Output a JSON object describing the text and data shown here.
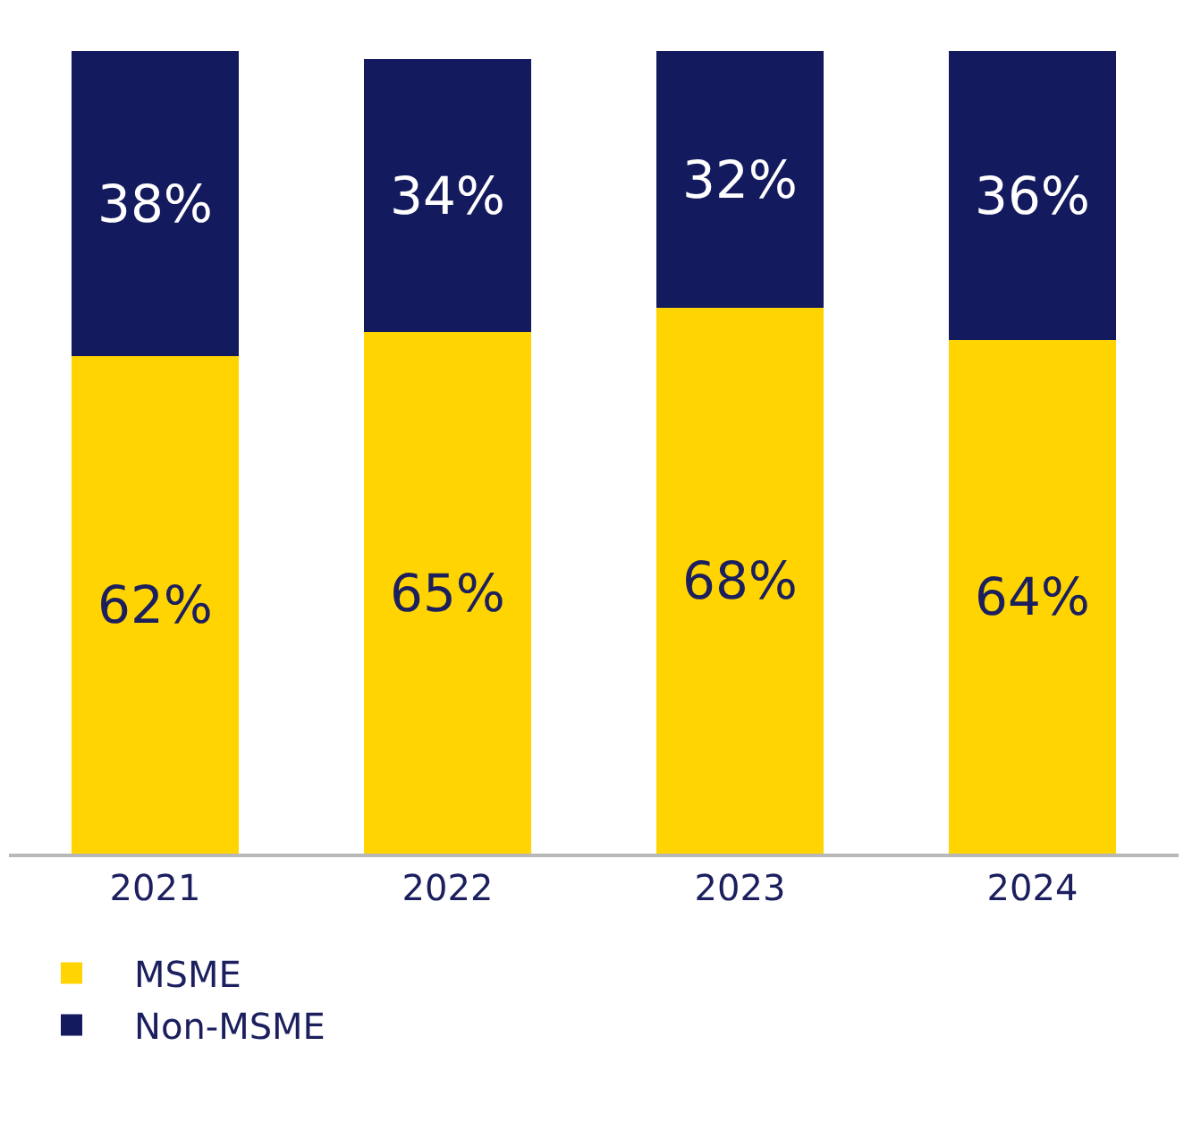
{
  "chart_data": {
    "type": "bar",
    "stacked": true,
    "categories": [
      "2021",
      "2022",
      "2023",
      "2024"
    ],
    "series": [
      {
        "name": "MSME",
        "color": "#ffd400",
        "values": [
          62,
          65,
          68,
          64
        ],
        "value_labels": [
          "62%",
          "65%",
          "68%",
          "64%"
        ]
      },
      {
        "name": "Non-MSME",
        "color": "#141a5e",
        "values": [
          38,
          34,
          32,
          36
        ],
        "value_labels": [
          "38%",
          "34%",
          "32%",
          "36%"
        ]
      }
    ],
    "legend": "bottom left",
    "grid": false
  }
}
